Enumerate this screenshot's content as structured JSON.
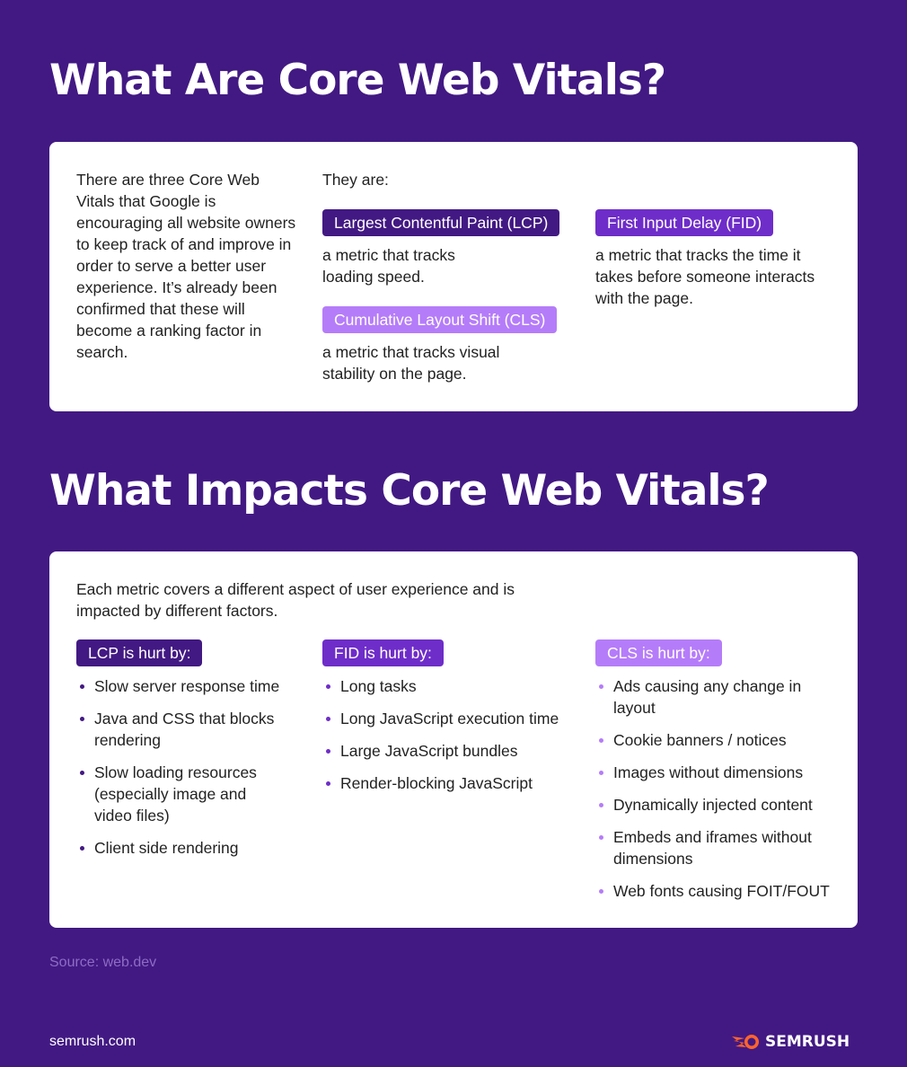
{
  "section1": {
    "title": "What Are Core Web Vitals?",
    "intro": "There are three Core Web Vitals that Google is encouraging all website owners to keep track of and improve in order to serve a better user experience. It’s already been confirmed that these will become a ranking factor in search.",
    "they_are": "They are:",
    "metrics": [
      {
        "tag": "Largest Contentful Paint (LCP)",
        "desc": "a metric that tracks loading speed.",
        "color": "#421983"
      },
      {
        "tag": "First Input Delay (FID)",
        "desc": "a metric that tracks the time it takes before someone interacts with the page.",
        "color": "#6E2DC9"
      },
      {
        "tag": "Cumulative Layout Shift (CLS)",
        "desc": "a metric that tracks visual stability on the page.",
        "color": "#B57CF9"
      }
    ]
  },
  "section2": {
    "title": "What Impacts Core Web Vitals?",
    "intro": "Each metric covers a different aspect of user experience and is impacted by different factors.",
    "columns": [
      {
        "tag": "LCP is hurt by:",
        "color": "#421983",
        "items": [
          "Slow server response time",
          "Java and CSS that blocks rendering",
          "Slow loading resources (especially image and video files)",
          "Client side rendering"
        ]
      },
      {
        "tag": "FID is hurt by:",
        "color": "#6E2DC9",
        "items": [
          "Long tasks",
          "Long JavaScript execution time",
          "Large JavaScript bundles",
          "Render-blocking JavaScript"
        ]
      },
      {
        "tag": "CLS is hurt by:",
        "color": "#B57CF9",
        "items": [
          "Ads causing any change in layout",
          "Cookie banners / notices",
          "Images without dimensions",
          "Dynamically injected content",
          "Embeds and iframes without dimensions",
          "Web fonts causing FOIT/FOUT"
        ]
      }
    ]
  },
  "source": "Source: web.dev",
  "site": "semrush.com",
  "logo": {
    "text": "SEMRUSH",
    "color": "#FF642D"
  }
}
